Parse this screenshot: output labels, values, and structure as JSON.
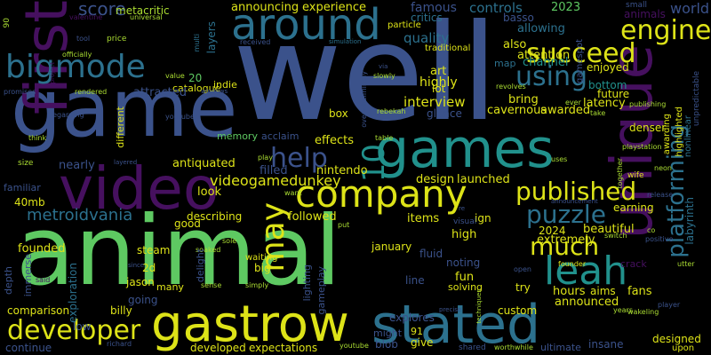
{
  "palette": {
    "background": "#000000",
    "deep_purple": "#46105f",
    "indigo": "#3b528b",
    "blue": "#2c718e",
    "teal": "#21918c",
    "green": "#27ad81",
    "bright_green": "#5ec962",
    "yellow_green": "#aadc32",
    "yellow": "#dde318"
  },
  "words": [
    {
      "id": "well",
      "text": "well"
    },
    {
      "id": "animal",
      "text": "animal"
    },
    {
      "id": "game",
      "text": "game"
    },
    {
      "id": "games",
      "text": "games"
    },
    {
      "id": "unique",
      "text": "unique"
    },
    {
      "id": "first",
      "text": "first"
    },
    {
      "id": "video",
      "text": "video"
    },
    {
      "id": "gastrow",
      "text": "gastrow"
    },
    {
      "id": "stated",
      "text": "stated"
    },
    {
      "id": "company",
      "text": "company"
    },
    {
      "id": "around",
      "text": "around"
    },
    {
      "id": "bigmode",
      "text": "bigmode"
    },
    {
      "id": "developer",
      "text": "developer"
    },
    {
      "id": "leah",
      "text": "leah"
    },
    {
      "id": "engine",
      "text": "engine"
    },
    {
      "id": "platforming",
      "text": "platforming"
    },
    {
      "id": "succeed",
      "text": "succeed"
    },
    {
      "id": "published",
      "text": "published"
    },
    {
      "id": "puzzle",
      "text": "puzzle"
    },
    {
      "id": "much",
      "text": "much"
    },
    {
      "id": "may",
      "text": "may"
    },
    {
      "id": "help",
      "text": "help"
    },
    {
      "id": "using",
      "text": "using"
    },
    {
      "id": "metroidvania",
      "text": "metroidvania"
    },
    {
      "id": "videogamedunkey",
      "text": "videogamedunkey"
    },
    {
      "id": "ten",
      "text": "10"
    },
    {
      "id": "score",
      "text": "score"
    },
    {
      "id": "metacritic",
      "text": "metacritic"
    },
    {
      "id": "announcing",
      "text": "announcing"
    },
    {
      "id": "experience",
      "text": "experience"
    },
    {
      "id": "famous",
      "text": "famous"
    },
    {
      "id": "critics",
      "text": "critics"
    },
    {
      "id": "controls",
      "text": "controls"
    },
    {
      "id": "basso",
      "text": "basso"
    },
    {
      "id": "year_2023",
      "text": "2023"
    },
    {
      "id": "small",
      "text": "small"
    },
    {
      "id": "world",
      "text": "world"
    },
    {
      "id": "animals",
      "text": "animals"
    },
    {
      "id": "valentine",
      "text": "valentine"
    },
    {
      "id": "universal",
      "text": "universal"
    },
    {
      "id": "tool",
      "text": "tool"
    },
    {
      "id": "price",
      "text": "price"
    },
    {
      "id": "officially",
      "text": "officially"
    },
    {
      "id": "project",
      "text": "project"
    },
    {
      "id": "ninety",
      "text": "90"
    },
    {
      "id": "multi",
      "text": "multi"
    },
    {
      "id": "layers",
      "text": "layers"
    },
    {
      "id": "received",
      "text": "received"
    },
    {
      "id": "simulation",
      "text": "simulation"
    },
    {
      "id": "quality",
      "text": "quality"
    },
    {
      "id": "particle",
      "text": "particle"
    },
    {
      "id": "traditional",
      "text": "traditional"
    },
    {
      "id": "allowing",
      "text": "allowing"
    },
    {
      "id": "also",
      "text": "also"
    },
    {
      "id": "attention",
      "text": "attention"
    },
    {
      "id": "gamespot",
      "text": "gamespot"
    },
    {
      "id": "map",
      "text": "map"
    },
    {
      "id": "channel",
      "text": "channel"
    },
    {
      "id": "enjoyed",
      "text": "enjoyed"
    },
    {
      "id": "layers_b",
      "text": "layers"
    },
    {
      "id": "catalogue",
      "text": "catalogue"
    },
    {
      "id": "value",
      "text": "value"
    },
    {
      "id": "twenty",
      "text": "20"
    },
    {
      "id": "indie",
      "text": "indie"
    },
    {
      "id": "windows",
      "text": "windows"
    },
    {
      "id": "via",
      "text": "via"
    },
    {
      "id": "overwhelmingly",
      "text": "overwhelmingly"
    },
    {
      "id": "slowly",
      "text": "slowly"
    },
    {
      "id": "art",
      "text": "art"
    },
    {
      "id": "highly",
      "text": "highly"
    },
    {
      "id": "lot",
      "text": "lot"
    },
    {
      "id": "bottom",
      "text": "bottom"
    },
    {
      "id": "future",
      "text": "future"
    },
    {
      "id": "latency",
      "text": "latency"
    },
    {
      "id": "take",
      "text": "take"
    },
    {
      "id": "publishing",
      "text": "publishing"
    },
    {
      "id": "unpredictable",
      "text": "unpredictable"
    },
    {
      "id": "nonlinear",
      "text": "nonlinear"
    },
    {
      "id": "highlighted",
      "text": "highlighted"
    },
    {
      "id": "awarding",
      "text": "awarding"
    },
    {
      "id": "promises",
      "text": "promises"
    },
    {
      "id": "rendered",
      "text": "rendered"
    },
    {
      "id": "attracted",
      "text": "attracted"
    },
    {
      "id": "interview",
      "text": "interview"
    },
    {
      "id": "bring",
      "text": "bring"
    },
    {
      "id": "revolves",
      "text": "revolves"
    },
    {
      "id": "regarding",
      "text": "regarding"
    },
    {
      "id": "different",
      "text": "different"
    },
    {
      "id": "youtuber",
      "text": "youtuber"
    },
    {
      "id": "memory",
      "text": "memory"
    },
    {
      "id": "acclaim",
      "text": "acclaim"
    },
    {
      "id": "effects",
      "text": "effects"
    },
    {
      "id": "box",
      "text": "box"
    },
    {
      "id": "rebekah",
      "text": "rebekah"
    },
    {
      "id": "glance",
      "text": "glance"
    },
    {
      "id": "cavernous",
      "text": "cavernous"
    },
    {
      "id": "awarded",
      "text": "awarded"
    },
    {
      "id": "ever",
      "text": "ever"
    },
    {
      "id": "denser",
      "text": "denser"
    },
    {
      "id": "playstation",
      "text": "playstation"
    },
    {
      "id": "think",
      "text": "think"
    },
    {
      "id": "size",
      "text": "size"
    },
    {
      "id": "nearly",
      "text": "nearly"
    },
    {
      "id": "layered",
      "text": "layered"
    },
    {
      "id": "play",
      "text": "play"
    },
    {
      "id": "filled",
      "text": "filled"
    },
    {
      "id": "nintendo",
      "text": "nintendo"
    },
    {
      "id": "table",
      "text": "table"
    },
    {
      "id": "uses",
      "text": "uses"
    },
    {
      "id": "together",
      "text": "together"
    },
    {
      "id": "neon",
      "text": "neon"
    },
    {
      "id": "wife",
      "text": "wife"
    },
    {
      "id": "familiar",
      "text": "familiar"
    },
    {
      "id": "antiquated",
      "text": "antiquated"
    },
    {
      "id": "design",
      "text": "design"
    },
    {
      "id": "launched",
      "text": "launched"
    },
    {
      "id": "announcement",
      "text": "announcement"
    },
    {
      "id": "release",
      "text": "release"
    },
    {
      "id": "forty_mb",
      "text": "40mb"
    },
    {
      "id": "want",
      "text": "want"
    },
    {
      "id": "earning",
      "text": "earning"
    },
    {
      "id": "co",
      "text": "co"
    },
    {
      "id": "labyrinth",
      "text": "labyrinth"
    },
    {
      "id": "look",
      "text": "look"
    },
    {
      "id": "describing",
      "text": "describing"
    },
    {
      "id": "followed",
      "text": "followed"
    },
    {
      "id": "items",
      "text": "items"
    },
    {
      "id": "ign",
      "text": "ign"
    },
    {
      "id": "re",
      "text": "re"
    },
    {
      "id": "visual",
      "text": "visual"
    },
    {
      "id": "beautiful",
      "text": "beautiful"
    },
    {
      "id": "switch",
      "text": "switch"
    },
    {
      "id": "positive",
      "text": "positive"
    },
    {
      "id": "good",
      "text": "good"
    },
    {
      "id": "immerse",
      "text": "immerse"
    },
    {
      "id": "founded",
      "text": "founded"
    },
    {
      "id": "sole",
      "text": "sole"
    },
    {
      "id": "put",
      "text": "put"
    },
    {
      "id": "high",
      "text": "high"
    },
    {
      "id": "year_2024",
      "text": "2024"
    },
    {
      "id": "extremely",
      "text": "extremely"
    },
    {
      "id": "steam",
      "text": "steam"
    },
    {
      "id": "soaked",
      "text": "soaked"
    },
    {
      "id": "delight",
      "text": "delight"
    },
    {
      "id": "waiting",
      "text": "waiting"
    },
    {
      "id": "big",
      "text": "big"
    },
    {
      "id": "january",
      "text": "january"
    },
    {
      "id": "fluid",
      "text": "fluid"
    },
    {
      "id": "noting",
      "text": "noting"
    },
    {
      "id": "crack",
      "text": "crack"
    },
    {
      "id": "utter",
      "text": "utter"
    },
    {
      "id": "depth",
      "text": "depth"
    },
    {
      "id": "said",
      "text": "said"
    },
    {
      "id": "two_d",
      "text": "2d"
    },
    {
      "id": "jason",
      "text": "jason"
    },
    {
      "id": "since",
      "text": "since"
    },
    {
      "id": "many",
      "text": "many"
    },
    {
      "id": "sense",
      "text": "sense"
    },
    {
      "id": "simply",
      "text": "simply"
    },
    {
      "id": "lighting",
      "text": "lighting"
    },
    {
      "id": "gameplay",
      "text": "gameplay"
    },
    {
      "id": "fun",
      "text": "fun"
    },
    {
      "id": "line",
      "text": "line"
    },
    {
      "id": "open",
      "text": "open"
    },
    {
      "id": "founder",
      "text": "founder"
    },
    {
      "id": "exploration",
      "text": "exploration"
    },
    {
      "id": "comparison",
      "text": "comparison"
    },
    {
      "id": "going",
      "text": "going"
    },
    {
      "id": "try",
      "text": "try"
    },
    {
      "id": "solving",
      "text": "solving"
    },
    {
      "id": "techniques",
      "text": "techniques"
    },
    {
      "id": "hours",
      "text": "hours"
    },
    {
      "id": "aims",
      "text": "aims"
    },
    {
      "id": "fans",
      "text": "fans"
    },
    {
      "id": "player",
      "text": "player"
    },
    {
      "id": "billy",
      "text": "billy"
    },
    {
      "id": "low",
      "text": "low"
    },
    {
      "id": "custom",
      "text": "custom"
    },
    {
      "id": "announced",
      "text": "announced"
    },
    {
      "id": "precise",
      "text": "precise"
    },
    {
      "id": "years",
      "text": "years"
    },
    {
      "id": "wakeling",
      "text": "wakeling"
    },
    {
      "id": "continue",
      "text": "continue"
    },
    {
      "id": "richard",
      "text": "richard"
    },
    {
      "id": "developed",
      "text": "developed"
    },
    {
      "id": "expectations",
      "text": "expectations"
    },
    {
      "id": "might",
      "text": "might"
    },
    {
      "id": "ninety_one",
      "text": "91"
    },
    {
      "id": "explores",
      "text": "explores"
    },
    {
      "id": "youtube",
      "text": "youtube"
    },
    {
      "id": "blob",
      "text": "blob"
    },
    {
      "id": "give",
      "text": "give"
    },
    {
      "id": "shared",
      "text": "shared"
    },
    {
      "id": "worthwhile",
      "text": "worthwhile"
    },
    {
      "id": "ultimate",
      "text": "ultimate"
    },
    {
      "id": "insane",
      "text": "insane"
    },
    {
      "id": "designed",
      "text": "designed"
    },
    {
      "id": "upon",
      "text": "upon"
    }
  ]
}
